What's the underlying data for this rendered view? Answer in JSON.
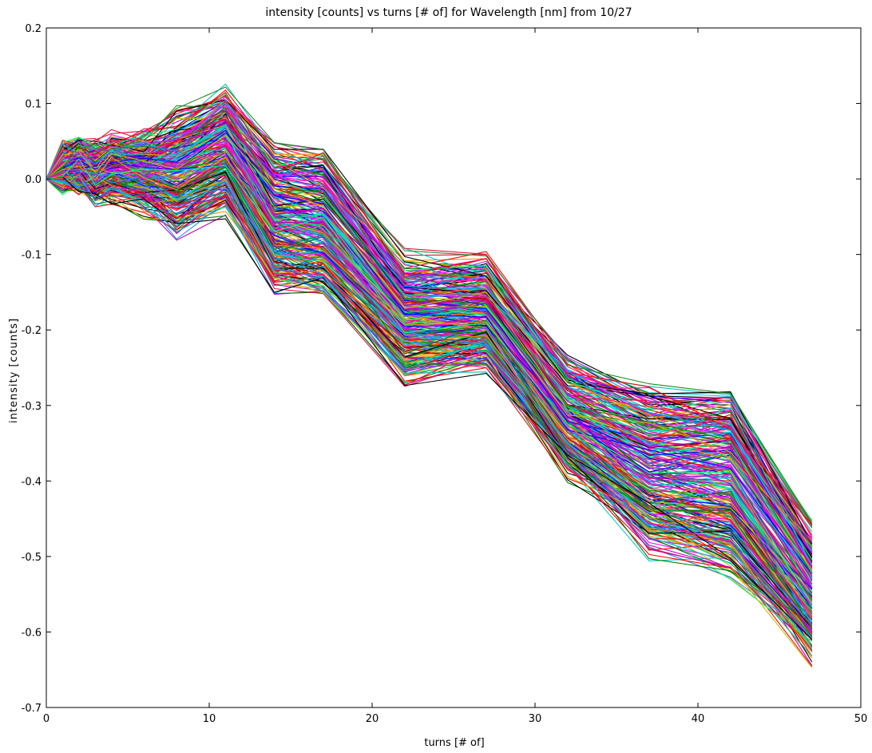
{
  "chart_data": {
    "type": "line",
    "title": "intensity [counts] vs turns [# of] for Wavelength [nm] from 10/27",
    "xlabel": "turns [# of]",
    "ylabel": "intensity [counts]",
    "xlim": [
      0,
      50
    ],
    "ylim": [
      -0.7,
      0.2
    ],
    "xticks": [
      0,
      10,
      20,
      30,
      40,
      50
    ],
    "xtick_labels": [
      "0",
      "10",
      "20",
      "30",
      "40",
      "50"
    ],
    "yticks": [
      0.2,
      0.1,
      0.0,
      -0.1,
      -0.2,
      -0.3,
      -0.4,
      -0.5,
      -0.6,
      -0.7
    ],
    "ytick_labels": [
      "0.2",
      "0.1",
      "0.0",
      "-0.1",
      "-0.2",
      "-0.3",
      "-0.4",
      "-0.5",
      "-0.6",
      "-0.7"
    ],
    "grid": false,
    "legend": "none",
    "x": [
      0,
      1,
      2,
      3,
      4,
      6,
      8,
      11,
      14,
      17,
      22,
      27,
      32,
      37,
      42,
      47
    ],
    "series_count": 300,
    "series": [
      {
        "values": [
          0,
          0.02,
          0.03,
          0.025,
          0.03,
          0.02,
          0.03,
          0.06,
          -0.04,
          -0.05,
          -0.17,
          -0.17,
          -0.31,
          -0.36,
          -0.36,
          -0.52
        ]
      },
      {
        "values": [
          0,
          0.038,
          0.044,
          0.04,
          0.05,
          0.052,
          0.08,
          0.11,
          0.03,
          0.027,
          -0.11,
          -0.115,
          -0.255,
          -0.29,
          -0.305,
          -0.46
        ]
      },
      {
        "values": [
          0,
          -0.01,
          -0.005,
          -0.025,
          -0.022,
          -0.04,
          -0.07,
          -0.035,
          -0.14,
          -0.135,
          -0.26,
          -0.24,
          -0.385,
          -0.45,
          -0.49,
          -0.625
        ]
      },
      {
        "values": [
          0,
          0.035,
          0.04,
          0.03,
          0.04,
          0.04,
          0.055,
          0.09,
          0.015,
          0.005,
          -0.13,
          -0.125,
          -0.255,
          -0.305,
          -0.305,
          -0.5
        ]
      },
      {
        "values": [
          0,
          -0.005,
          -0.01,
          -0.015,
          -0.01,
          -0.025,
          -0.05,
          -0.025,
          -0.12,
          -0.13,
          -0.24,
          -0.23,
          -0.365,
          -0.485,
          -0.515,
          -0.61
        ]
      },
      {
        "values": [
          0,
          0.015,
          0.01,
          0.005,
          0.02,
          0.005,
          0.0,
          0.03,
          -0.08,
          -0.09,
          -0.2,
          -0.2,
          -0.34,
          -0.41,
          -0.43,
          -0.57
        ]
      },
      {
        "values": [
          0,
          0.025,
          0.02,
          0.02,
          0.035,
          0.03,
          0.04,
          0.075,
          -0.02,
          -0.03,
          -0.15,
          -0.15,
          -0.3,
          -0.34,
          -0.34,
          -0.5
        ]
      },
      {
        "values": [
          0,
          0.005,
          0.0,
          -0.005,
          0.005,
          -0.01,
          -0.03,
          0.005,
          -0.1,
          -0.11,
          -0.22,
          -0.22,
          -0.36,
          -0.45,
          -0.46,
          -0.6
        ]
      }
    ],
    "series_colors": [
      "#0000ff",
      "#008000",
      "#ff0000",
      "#00bfbf",
      "#bf00bf",
      "#bfbf00",
      "#000000",
      "#ff1493",
      "#ff8c00",
      "#8a2be2",
      "#00ff7f",
      "#1e90ff",
      "#dc143c",
      "#228b22",
      "#ff00ff",
      "#00ced1"
    ]
  }
}
